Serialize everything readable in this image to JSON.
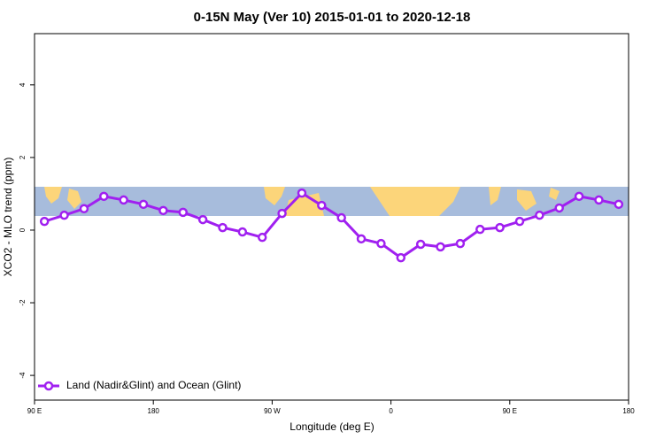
{
  "chart_data": {
    "type": "line",
    "title": "0-15N May (Ver 10)   2015-01-01 to 2020-12-18",
    "x_label": "Longitude (deg E)",
    "y_label": "XCO2 - MLO trend (ppm)",
    "xlim": [
      90,
      540
    ],
    "ylim": [
      -4.68,
      5.41
    ],
    "xticks": [
      {
        "value": 90,
        "label": "90 E"
      },
      180,
      {
        "value": 270,
        "label": "90 W"
      },
      {
        "value": 360,
        "label": "0"
      },
      {
        "value": 450,
        "label": "90 E"
      },
      {
        "value": 540,
        "label": "180"
      }
    ],
    "yticks": [
      -4,
      -2,
      0,
      2,
      4
    ],
    "legend": "bottom-left",
    "x": [
      97.5,
      112.5,
      127.5,
      142.5,
      157.5,
      172.5,
      187.5,
      202.5,
      217.5,
      232.5,
      247.5,
      262.5,
      277.5,
      292.5,
      307.5,
      322.5,
      337.5,
      352.5,
      367.5,
      382.5,
      397.5,
      412.5,
      427.5,
      442.5,
      457.5,
      472.5,
      487.5,
      502.5,
      517.5,
      532.5
    ],
    "series": [
      {
        "name": "Land (Nadir&Glint) and Ocean (Glint)",
        "color": "#a020f0",
        "values": [
          0.24,
          0.41,
          0.59,
          0.93,
          0.83,
          0.71,
          0.54,
          0.49,
          0.29,
          0.07,
          -0.05,
          -0.2,
          0.46,
          1.02,
          0.68,
          0.34,
          -0.24,
          -0.37,
          -0.76,
          -0.39,
          -0.46,
          -0.37,
          0.02,
          0.07,
          0.24,
          0.41,
          0.61,
          0.93,
          0.83,
          0.71
        ]
      }
    ]
  }
}
